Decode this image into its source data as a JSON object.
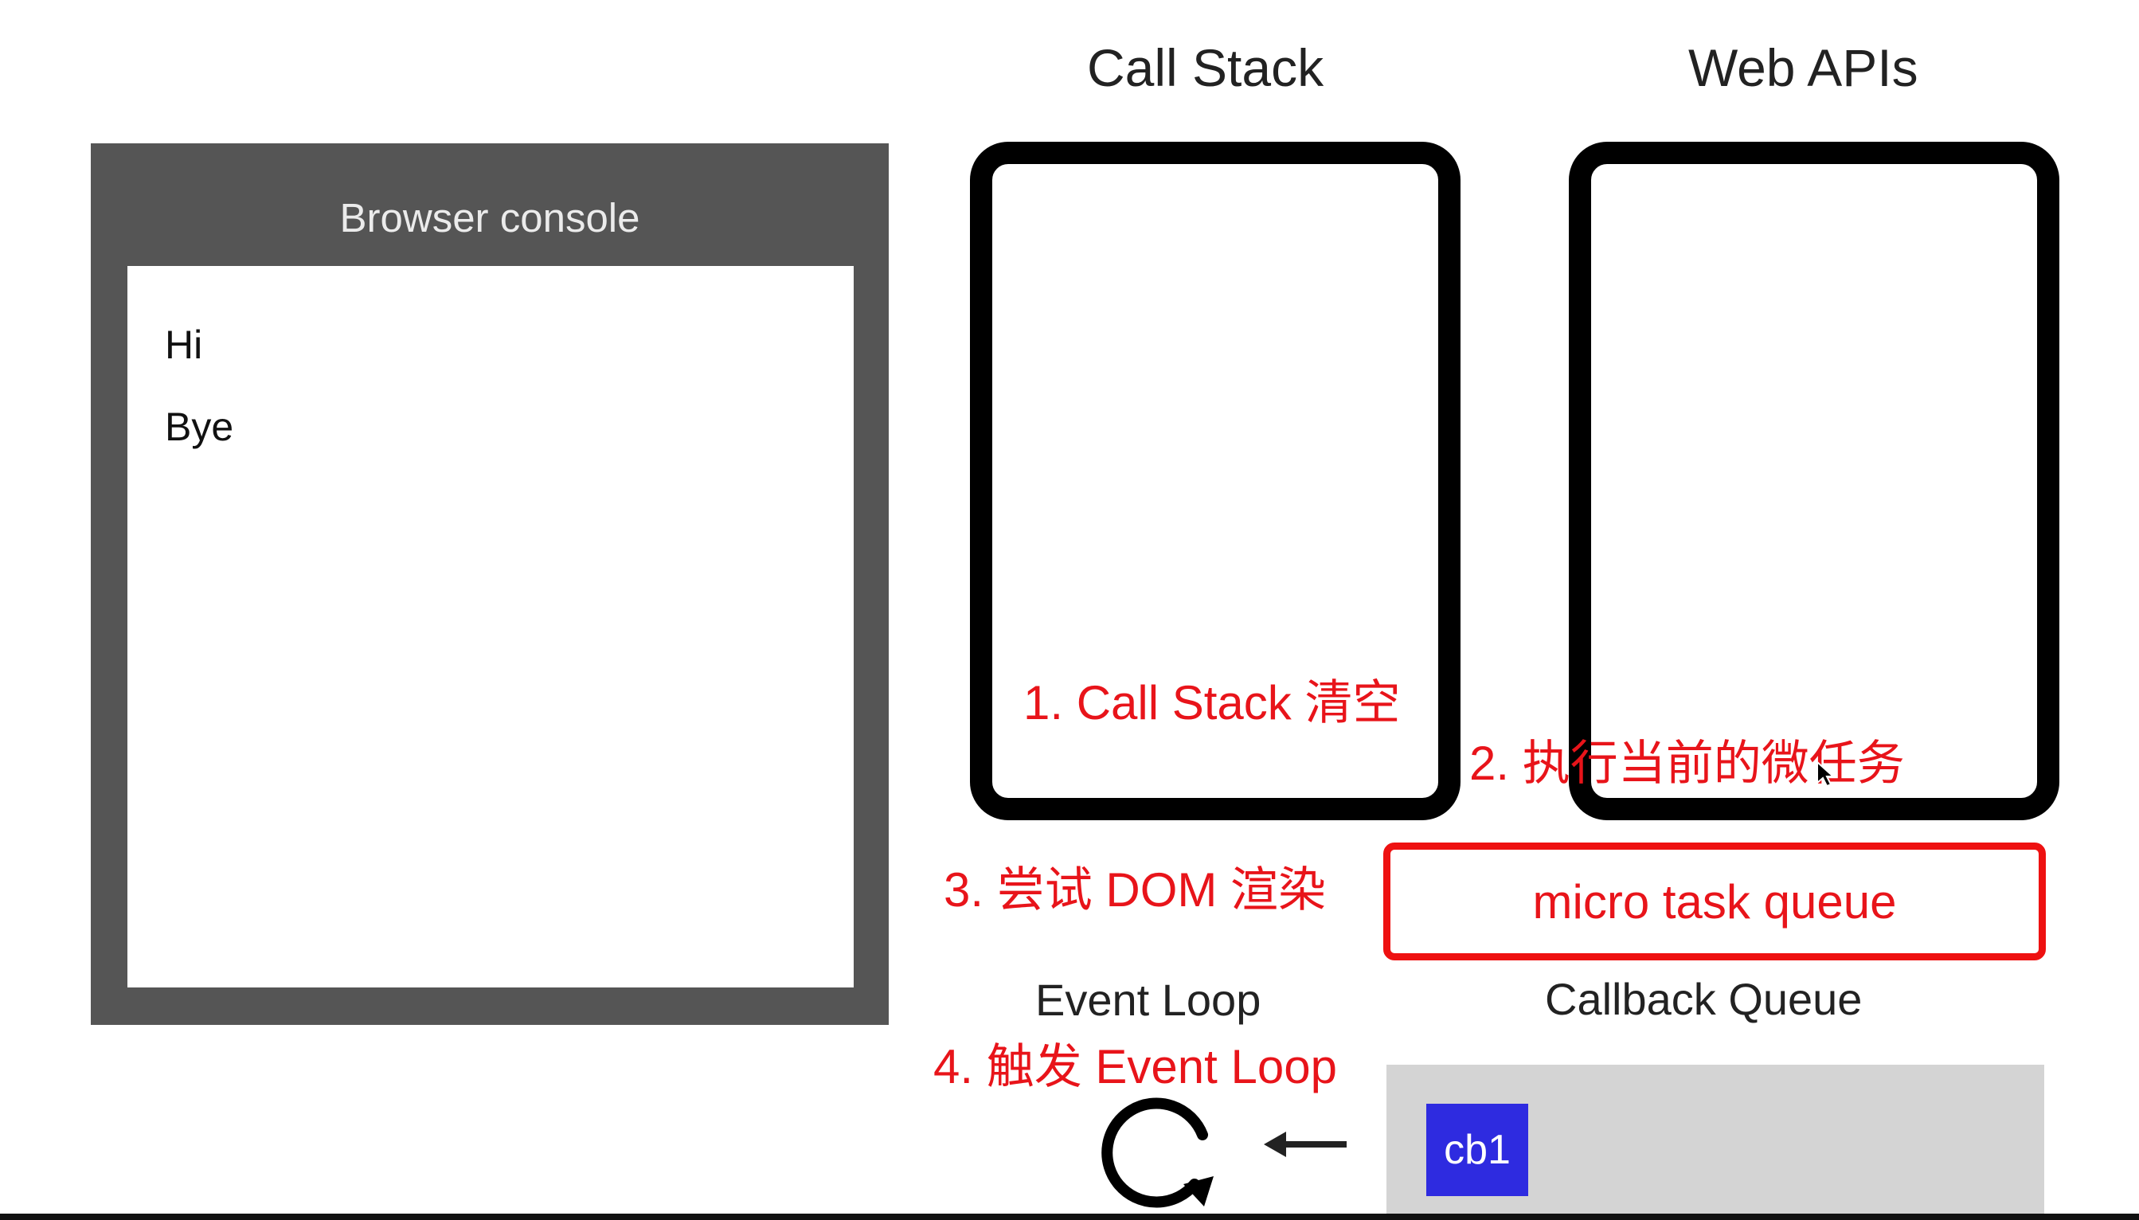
{
  "console": {
    "title": "Browser console",
    "lines": [
      "Hi",
      "Bye"
    ]
  },
  "headings": {
    "call_stack": "Call Stack",
    "web_apis": "Web APIs"
  },
  "notes": {
    "step1": "1. Call Stack 清空",
    "step2": "2. 执行当前的微任务",
    "step3": "3. 尝试 DOM 渲染",
    "step4": "4. 触发 Event Loop"
  },
  "micro_task_queue": {
    "label": "micro task queue"
  },
  "event_loop": {
    "label": "Event Loop"
  },
  "callback_queue": {
    "label": "Callback Queue",
    "items": [
      "cb1"
    ]
  },
  "colors": {
    "console_frame": "#555555",
    "note_red": "#e8141a",
    "callback_bg": "#d4d4d4",
    "cb_item": "#2e2be0"
  },
  "icons": [
    "loop-arrow-icon",
    "left-arrow-icon",
    "cursor-icon"
  ]
}
